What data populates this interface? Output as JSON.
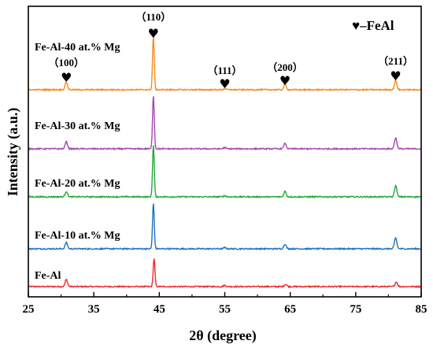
{
  "chart_data": {
    "type": "line",
    "xlabel": "2θ (degree)",
    "ylabel": "Intensity (a.u.)",
    "xlim": [
      25,
      85
    ],
    "x_ticks": [
      25,
      35,
      45,
      55,
      65,
      75,
      85
    ],
    "grid": false,
    "legend_text": "♥–FeAl",
    "legend_position": "top-right",
    "series": [
      {
        "name": "Fe-Al",
        "color": "#ef2a2a",
        "offset": 0,
        "peaks": [
          {
            "x": 30.8,
            "h": 9
          },
          {
            "x": 44.2,
            "h": 36
          },
          {
            "x": 55.0,
            "h": 1.5
          },
          {
            "x": 64.3,
            "h": 3
          },
          {
            "x": 81.2,
            "h": 6
          }
        ]
      },
      {
        "name": "Fe-Al-10 at.% Mg",
        "color": "#1e73be",
        "offset": 1,
        "peaks": [
          {
            "x": 30.8,
            "h": 8
          },
          {
            "x": 44.1,
            "h": 58
          },
          {
            "x": 55.0,
            "h": 1.5
          },
          {
            "x": 64.2,
            "h": 6
          },
          {
            "x": 81.1,
            "h": 14
          }
        ]
      },
      {
        "name": "Fe-Al-20 at.% Mg",
        "color": "#23a838",
        "offset": 2,
        "peaks": [
          {
            "x": 30.8,
            "h": 7
          },
          {
            "x": 44.1,
            "h": 66
          },
          {
            "x": 55.0,
            "h": 1.5
          },
          {
            "x": 64.2,
            "h": 7
          },
          {
            "x": 81.1,
            "h": 14
          }
        ]
      },
      {
        "name": "Fe-Al-30 at.% Mg",
        "color": "#a648b0",
        "offset": 3,
        "peaks": [
          {
            "x": 30.8,
            "h": 9
          },
          {
            "x": 44.1,
            "h": 68
          },
          {
            "x": 55.0,
            "h": 1.5
          },
          {
            "x": 64.2,
            "h": 7
          },
          {
            "x": 81.1,
            "h": 14
          }
        ]
      },
      {
        "name": "Fe-Al-40 at.% Mg",
        "color": "#f58a1f",
        "offset": 4,
        "peaks": [
          {
            "x": 30.8,
            "h": 10
          },
          {
            "x": 44.1,
            "h": 68
          },
          {
            "x": 55.0,
            "h": 1.5
          },
          {
            "x": 64.2,
            "h": 7
          },
          {
            "x": 81.1,
            "h": 12
          }
        ]
      }
    ],
    "annotations": [
      {
        "label": "（100）",
        "x": 30.8
      },
      {
        "label": "（110）",
        "x": 44.1
      },
      {
        "label": "（111）",
        "x": 55.0
      },
      {
        "label": "（200）",
        "x": 64.2
      },
      {
        "label": "（211）",
        "x": 81.1
      }
    ]
  }
}
